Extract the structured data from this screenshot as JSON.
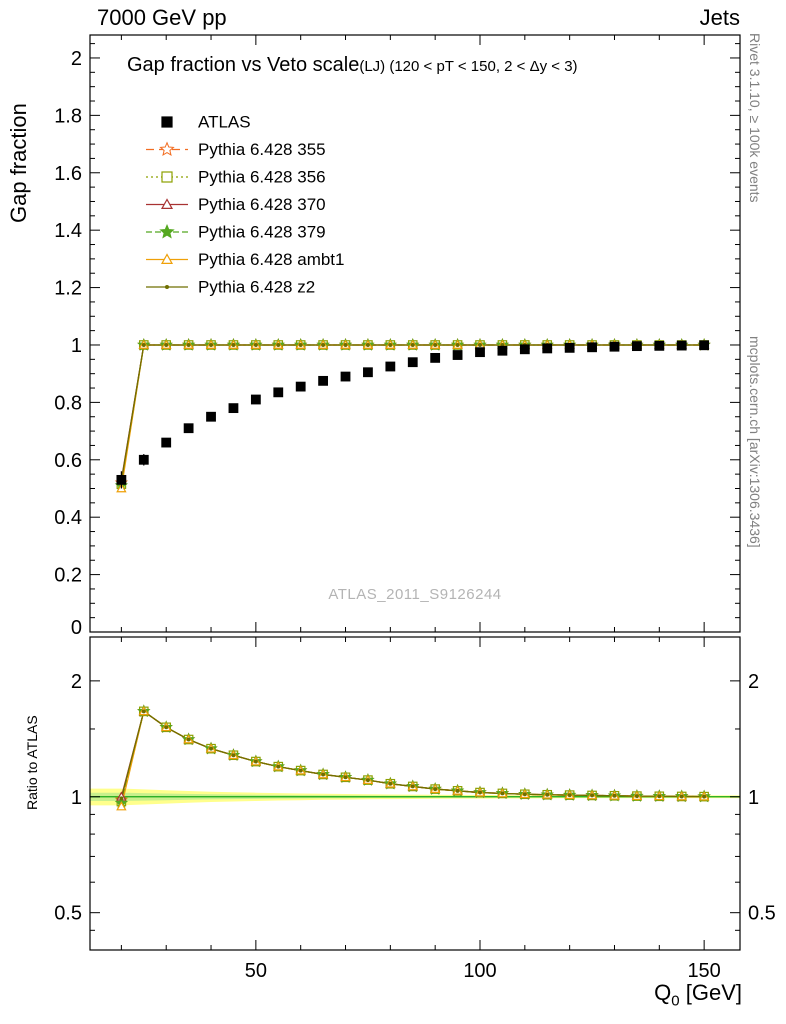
{
  "header": {
    "left": "7000 GeV pp",
    "right": "Jets"
  },
  "titles": {
    "main": "Gap fraction vs Veto scale",
    "cut": "(LJ) (120 < pT < 150, 2 < Δy < 3)"
  },
  "side": {
    "top": "Rivet 3.1.10, ≥ 100k events",
    "bottom": "mcplots.cern.ch [arXiv:1306.3436]"
  },
  "watermark": "ATLAS_2011_S9126244",
  "axes": {
    "y_label_main": "Gap fraction",
    "y_label_ratio": "Ratio to ATLAS",
    "x_label": {
      "base": "Q",
      "sub": "0",
      "unit": " [GeV]"
    }
  },
  "chart_data": {
    "type": "line",
    "title": "Gap fraction vs Veto scale (LJ) (120 < pT < 150, 2 < Δy < 3)",
    "xlabel": "Q_0 [GeV]",
    "ylabel": "Gap fraction",
    "ratio_ylabel": "Ratio to ATLAS",
    "xlim": [
      13,
      158
    ],
    "main_ylim": [
      0,
      2.08
    ],
    "ratio_ylim": [
      0.4,
      2.6
    ],
    "ratio_scale": "log",
    "grid": false,
    "legend_position": "top-left",
    "x": [
      20,
      25,
      30,
      35,
      40,
      45,
      50,
      55,
      60,
      65,
      70,
      75,
      80,
      85,
      90,
      95,
      100,
      105,
      110,
      115,
      120,
      125,
      130,
      135,
      140,
      145,
      150
    ],
    "x_major_ticks": [
      50,
      100,
      150
    ],
    "x_major_labels": [
      "50",
      "100",
      "150"
    ],
    "main_y_ticks": {
      "values": [
        0,
        0.2,
        0.4,
        0.6,
        0.8,
        1,
        1.2,
        1.4,
        1.6,
        1.8,
        2
      ],
      "labels": [
        "0",
        "0.2",
        "0.4",
        "0.6",
        "0.8",
        "1",
        "1.2",
        "1.4",
        "1.6",
        "1.8",
        "2"
      ]
    },
    "ratio_y_ticks": {
      "values": [
        0.5,
        1,
        2
      ],
      "labels": [
        "0.5",
        "1",
        "2"
      ]
    },
    "ratio_y_minor": [
      0.45,
      0.6,
      0.7,
      0.8,
      0.9,
      1.5
    ],
    "atlas": {
      "name": "ATLAS",
      "color": "#000000",
      "marker": "square",
      "values": [
        0.53,
        0.6,
        0.66,
        0.71,
        0.75,
        0.78,
        0.81,
        0.835,
        0.855,
        0.875,
        0.89,
        0.905,
        0.925,
        0.94,
        0.955,
        0.965,
        0.975,
        0.98,
        0.985,
        0.988,
        0.99,
        0.992,
        0.994,
        0.996,
        0.997,
        0.998,
        0.999
      ],
      "err": [
        0.03,
        0.02,
        0.015,
        0.013,
        0.011,
        0.01,
        0.009,
        0.008,
        0.008,
        0.007,
        0.007,
        0.006,
        0.006,
        0.005,
        0.005,
        0.005,
        0.004,
        0.004,
        0.004,
        0.004,
        0.003,
        0.003,
        0.003,
        0.003,
        0.003,
        0.003,
        0.003
      ]
    },
    "series": [
      {
        "name": "Pythia 6.428 355",
        "color": "#f26d21",
        "dash": "8,5",
        "marker": "star",
        "fill": false,
        "values": [
          0.52,
          1,
          1,
          1,
          1,
          1,
          1,
          1,
          1,
          1,
          1,
          1,
          1,
          1,
          1,
          1,
          1,
          1,
          1,
          1,
          1,
          1,
          1,
          1,
          1,
          1,
          1
        ]
      },
      {
        "name": "Pythia 6.428 356",
        "color": "#8da000",
        "dash": "2,3",
        "marker": "square",
        "fill": false,
        "values": [
          0.515,
          1,
          1,
          1,
          1,
          1,
          1,
          1,
          1,
          1,
          1,
          1,
          1,
          1,
          1,
          1,
          1,
          1,
          1,
          1,
          1,
          1,
          1,
          1,
          1,
          1,
          1
        ]
      },
      {
        "name": "Pythia 6.428 370",
        "color": "#a83232",
        "dash": "",
        "marker": "triangle",
        "fill": false,
        "values": [
          0.53,
          1,
          1,
          1,
          1,
          1,
          1,
          1,
          1,
          1,
          1,
          1,
          1,
          1,
          1,
          1,
          1,
          1,
          1,
          1,
          1,
          1,
          1,
          1,
          1,
          1,
          1
        ]
      },
      {
        "name": "Pythia 6.428 379",
        "color": "#55a820",
        "dash": "6,3",
        "marker": "star",
        "fill": true,
        "values": [
          0.51,
          1,
          1,
          1,
          1,
          1,
          1,
          1,
          1,
          1,
          1,
          1,
          1,
          1,
          1,
          1,
          1,
          1,
          1,
          1,
          1,
          1,
          1,
          1,
          1,
          1,
          1
        ]
      },
      {
        "name": "Pythia 6.428 ambt1",
        "color": "#efa008",
        "dash": "",
        "marker": "triangle",
        "fill": false,
        "values": [
          0.5,
          1,
          1,
          1,
          1,
          1,
          1,
          1,
          1,
          1,
          1,
          1,
          1,
          1,
          1,
          1,
          1,
          1,
          1,
          1,
          1,
          1,
          1,
          1,
          1,
          1,
          1
        ]
      },
      {
        "name": "Pythia 6.428 z2",
        "color": "#6f6f00",
        "dash": "",
        "marker": "dot",
        "fill": true,
        "values": [
          0.525,
          1,
          1,
          1,
          1,
          1,
          1,
          1,
          1,
          1,
          1,
          1,
          1,
          1,
          1,
          1,
          1,
          1,
          1,
          1,
          1,
          1,
          1,
          1,
          1,
          1,
          1
        ]
      }
    ],
    "band": {
      "outer": [
        0.05,
        0.045,
        0.04,
        0.035,
        0.031,
        0.028,
        0.025,
        0.022,
        0.02,
        0.018,
        0.017,
        0.015,
        0.014,
        0.013,
        0.012,
        0.011,
        0.011,
        0.01,
        0.01,
        0.009,
        0.009,
        0.008,
        0.008,
        0.008,
        0.008,
        0.008,
        0.008
      ],
      "outer_color": "#ffff8c",
      "inner_color": "#c8f08c",
      "center_color": "#18a818"
    }
  }
}
